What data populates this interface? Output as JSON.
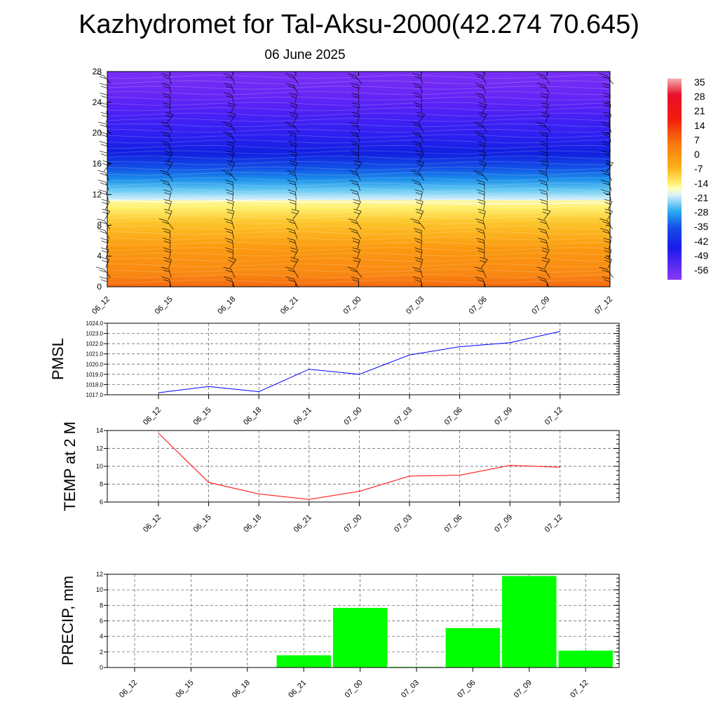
{
  "title": "Kazhydromet for Tal-Aksu-2000(42.274 70.645)",
  "subtitle": "06 June 2025",
  "colors": {
    "pmsl_line": "#0000ff",
    "temp_line": "#ff0000",
    "precip_bar": "#00ff00"
  },
  "chart_data": [
    {
      "type": "heatmap",
      "title": "",
      "xlabel": "",
      "ylabel": "",
      "x": [
        "06_12",
        "06_15",
        "06_18",
        "06_21",
        "07_00",
        "07_03",
        "07_06",
        "07_09",
        "07_12"
      ],
      "yticks": [
        0,
        4,
        8,
        12,
        16,
        20,
        24,
        28
      ],
      "ylim": [
        0,
        28
      ],
      "freezing_level": [
        11.2,
        11.0,
        11.2,
        11.0,
        11.0,
        10.9,
        10.8,
        10.8,
        10.9
      ],
      "colorbar": {
        "labels": [
          "35",
          "28",
          "21",
          "14",
          "7",
          "0",
          "-7",
          "-14",
          "-21",
          "-28",
          "-35",
          "-42",
          "-49",
          "-56"
        ],
        "range": [
          -60,
          38
        ]
      },
      "overlay": "wind barbs",
      "legend": "right"
    },
    {
      "type": "line",
      "title": "",
      "xlabel": "",
      "ylabel": "PMSL",
      "x": [
        "06_12",
        "06_15",
        "06_18",
        "06_21",
        "07_00",
        "07_03",
        "07_06",
        "07_09",
        "07_12"
      ],
      "series": [
        {
          "values": [
            1017.2,
            1017.8,
            1017.3,
            1019.5,
            1019.0,
            1020.9,
            1021.7,
            1022.1,
            1023.2
          ]
        }
      ],
      "yticks": [
        "1017.0",
        "1018.0",
        "1019.0",
        "1020.0",
        "1021.0",
        "1022.0",
        "1023.0",
        "1024.0"
      ],
      "ylim": [
        1017,
        1024
      ],
      "grid": true
    },
    {
      "type": "line",
      "title": "",
      "xlabel": "",
      "ylabel": "TEMP at 2 M",
      "x": [
        "06_12",
        "06_15",
        "06_18",
        "06_21",
        "07_00",
        "07_03",
        "07_06",
        "07_09",
        "07_12"
      ],
      "series": [
        {
          "values": [
            13.7,
            8.2,
            6.9,
            6.3,
            7.2,
            8.9,
            9.0,
            10.1,
            9.9
          ]
        }
      ],
      "yticks": [
        "6",
        "8",
        "10",
        "12",
        "14"
      ],
      "ylim": [
        6,
        14
      ],
      "grid": true
    },
    {
      "type": "bar",
      "title": "",
      "xlabel": "",
      "ylabel": "PRECIP, mm",
      "categories": [
        "06_12",
        "06_15",
        "06_18",
        "06_21",
        "07_00",
        "07_03",
        "07_06",
        "07_09",
        "07_12"
      ],
      "values": [
        0,
        0,
        0,
        1.6,
        7.7,
        0.1,
        5.1,
        11.8,
        2.2
      ],
      "yticks": [
        "0",
        "2",
        "4",
        "6",
        "8",
        "10",
        "12"
      ],
      "ylim": [
        0,
        12
      ],
      "grid": true
    }
  ]
}
